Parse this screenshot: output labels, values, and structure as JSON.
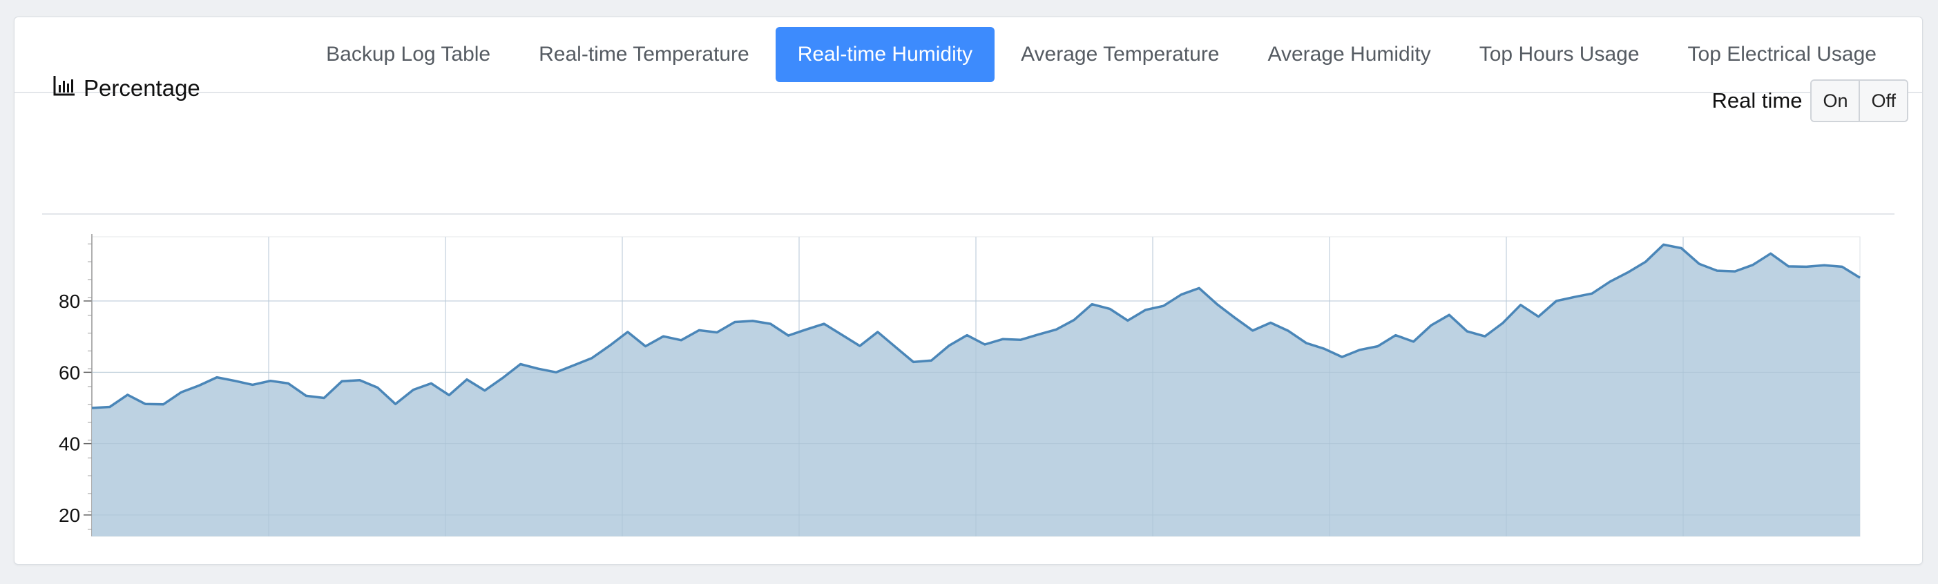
{
  "tabs": [
    {
      "label": "Backup Log Table",
      "active": false
    },
    {
      "label": "Real-time Temperature",
      "active": false
    },
    {
      "label": "Real-time Humidity",
      "active": true
    },
    {
      "label": "Average Temperature",
      "active": false
    },
    {
      "label": "Average Humidity",
      "active": false
    },
    {
      "label": "Top Hours Usage",
      "active": false
    },
    {
      "label": "Top Electrical Usage",
      "active": false
    }
  ],
  "panel": {
    "title": "Percentage",
    "icon": "bar-chart-icon",
    "realtime_label": "Real time",
    "toggle_on": "On",
    "toggle_off": "Off"
  },
  "colors": {
    "accent": "#3d8bfd",
    "line": "#4a86b8",
    "fill": "#b9d0e0"
  },
  "chart_data": {
    "type": "area",
    "title": "",
    "xlabel": "",
    "ylabel": "",
    "ylim": [
      14,
      98
    ],
    "yticks": [
      20,
      40,
      60,
      80
    ],
    "grid": true,
    "series": [
      {
        "values": [
          50,
          50.3,
          53.7,
          51.1,
          51,
          54.4,
          56.3,
          58.6,
          57.6,
          56.5,
          57.6,
          56.9,
          53.4,
          52.8,
          57.5,
          57.8,
          55.7,
          51.1,
          55.1,
          56.9,
          53.6,
          58,
          54.9,
          58.4,
          62.3,
          61,
          60,
          62,
          64,
          67.5,
          71.3,
          67.3,
          70.1,
          69,
          71.8,
          71.2,
          74.1,
          74.4,
          73.6,
          70.3,
          72,
          73.6,
          70.5,
          67.4,
          71.3,
          67.1,
          62.9,
          63.3,
          67.5,
          70.4,
          67.8,
          69.3,
          69.1,
          70.6,
          72,
          74.7,
          79.1,
          77.8,
          74.5,
          77.5,
          78.6,
          81.8,
          83.6,
          79.1,
          75.3,
          71.7,
          73.9,
          71.6,
          68.2,
          66.6,
          64.3,
          66.3,
          67.3,
          70.4,
          68.6,
          73.2,
          76.1,
          71.5,
          70.1,
          73.8,
          78.9,
          75.6,
          80,
          81.1,
          82.1,
          85.4,
          88,
          91,
          95.8,
          94.8,
          90.4,
          88.5,
          88.3,
          90.1,
          93.3,
          89.7,
          89.6,
          90,
          89.6,
          86.5
        ]
      }
    ]
  }
}
